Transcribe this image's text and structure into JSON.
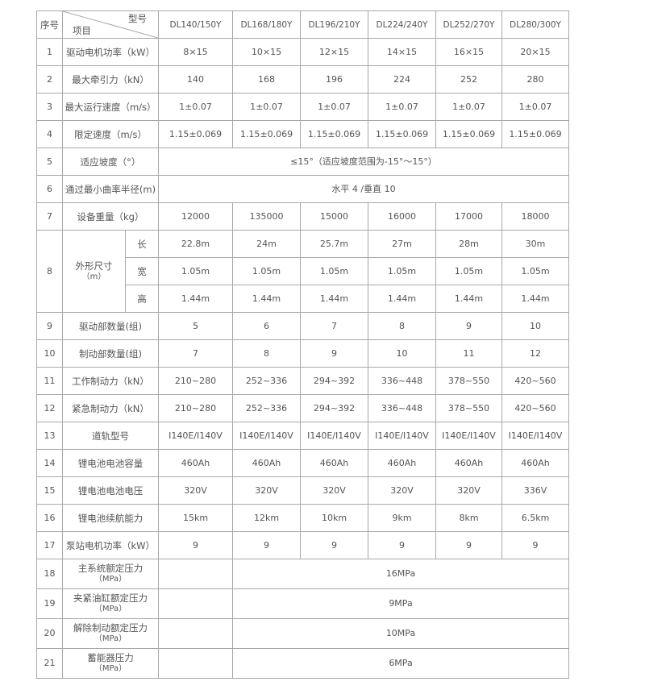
{
  "header": {
    "index_label": "序号",
    "model_label": "型号",
    "item_label": "项目",
    "models": [
      "DL140/150Y",
      "DL168/180Y",
      "DL196/210Y",
      "DL224/240Y",
      "DL252/270Y",
      "DL280/300Y"
    ]
  },
  "rows": [
    {
      "no": "1",
      "label": "驱动电机功率（kW）",
      "values": [
        "8×15",
        "10×15",
        "12×15",
        "14×15",
        "16×15",
        "20×15"
      ]
    },
    {
      "no": "2",
      "label": "最大牵引力（kN）",
      "values": [
        "140",
        "168",
        "196",
        "224",
        "252",
        "280"
      ]
    },
    {
      "no": "3",
      "label": "最大运行速度（m/s）",
      "values": [
        "1±0.07",
        "1±0.07",
        "1±0.07",
        "1±0.07",
        "1±0.07",
        "1±0.07"
      ]
    },
    {
      "no": "4",
      "label": "限定速度（m/s）",
      "values": [
        "1.15±0.069",
        "1.15±0.069",
        "1.15±0.069",
        "1.15±0.069",
        "1.15±0.069",
        "1.15±0.069"
      ]
    },
    {
      "no": "5",
      "label": "适应坡度（°）",
      "merged": "≤15°（适应坡度范围为-15°～15°）"
    },
    {
      "no": "6",
      "label": "通过最小曲率半径(m)",
      "merged": "水平 4 /垂直 10"
    },
    {
      "no": "7",
      "label": "设备重量（kg）",
      "values": [
        "12000",
        "135000",
        "15000",
        "16000",
        "17000",
        "18000"
      ]
    },
    {
      "no": "8",
      "label": "外形尺寸",
      "label_sub": "（m）",
      "subrows": [
        {
          "label": "长",
          "values": [
            "22.8m",
            "24m",
            "25.7m",
            "27m",
            "28m",
            "30m"
          ]
        },
        {
          "label": "宽",
          "values": [
            "1.05m",
            "1.05m",
            "1.05m",
            "1.05m",
            "1.05m",
            "1.05m"
          ]
        },
        {
          "label": "高",
          "values": [
            "1.44m",
            "1.44m",
            "1.44m",
            "1.44m",
            "1.44m",
            "1.44m"
          ]
        }
      ]
    },
    {
      "no": "9",
      "label": "驱动部数量(组)",
      "values": [
        "5",
        "6",
        "7",
        "8",
        "9",
        "10"
      ]
    },
    {
      "no": "10",
      "label": "制动部数量(组)",
      "values": [
        "7",
        "8",
        "9",
        "10",
        "11",
        "12"
      ]
    },
    {
      "no": "11",
      "label": "工作制动力（kN）",
      "values": [
        "210~280",
        "252~336",
        "294~392",
        "336~448",
        "378~550",
        "420~560"
      ]
    },
    {
      "no": "12",
      "label": "紧急制动力（kN）",
      "values": [
        "210~280",
        "252~336",
        "294~392",
        "336~448",
        "378~550",
        "420~560"
      ]
    },
    {
      "no": "13",
      "label": "道轨型号",
      "values": [
        "I140E/I140V",
        "I140E/I140V",
        "I140E/I140V",
        "I140E/I140V",
        "I140E/I140V",
        "I140E/I140V"
      ]
    },
    {
      "no": "14",
      "label": "锂电池电池容量",
      "values": [
        "460Ah",
        "460Ah",
        "460Ah",
        "460Ah",
        "460Ah",
        "460Ah"
      ]
    },
    {
      "no": "15",
      "label": "锂电池电池电压",
      "values": [
        "320V",
        "320V",
        "320V",
        "320V",
        "320V",
        "336V"
      ]
    },
    {
      "no": "16",
      "label": "锂电池续航能力",
      "values": [
        "15km",
        "12km",
        "10km",
        "9km",
        "8km",
        "6.5km"
      ]
    },
    {
      "no": "17",
      "label": "泵站电机功率（kW）",
      "values": [
        "9",
        "9",
        "9",
        "9",
        "9",
        "9"
      ]
    },
    {
      "no": "18",
      "label": "主系统额定压力",
      "label_sub": "（MPa）",
      "merged5": "16MPa"
    },
    {
      "no": "19",
      "label": "夹紧油缸额定压力",
      "label_sub": "（MPa）",
      "merged5": "9MPa"
    },
    {
      "no": "20",
      "label": "解除制动额定压力",
      "label_sub": "（MPa）",
      "merged5": "10MPa"
    },
    {
      "no": "21",
      "label": "蓄能器压力",
      "label_sub": "（MPa）",
      "merged5": "6MPa"
    }
  ]
}
